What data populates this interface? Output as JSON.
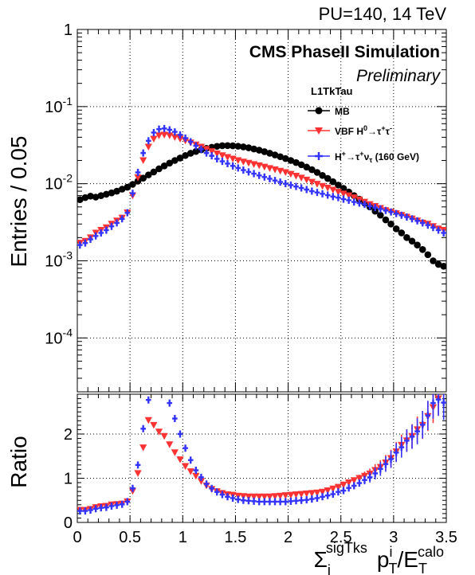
{
  "colors": {
    "mb": "#000000",
    "vbf": "#ff3333",
    "hplus": "#3333ff",
    "grid": "#000000"
  },
  "header": {
    "pileup": "PU=140, 14 TeV",
    "experiment": "CMS PhaseII Simulation",
    "status": "Preliminary",
    "algorithm": "L1TkTau"
  },
  "chart_data": [
    {
      "type": "scatter",
      "panel": "main",
      "ylabel": "Entries / 0.05",
      "xlim": [
        0,
        3.5
      ],
      "ylim": [
        2e-05,
        1
      ],
      "yscale": "log",
      "grid": true,
      "legend_position": "top-right",
      "x_ticks": [
        "0",
        "0.5",
        "1",
        "1.5",
        "2",
        "2.5",
        "3",
        "3.5"
      ],
      "y_ticks": [
        "1",
        "10^-1",
        "10^-2",
        "10^-3",
        "10^-4"
      ],
      "x": [
        0.025,
        0.075,
        0.125,
        0.175,
        0.225,
        0.275,
        0.325,
        0.375,
        0.425,
        0.475,
        0.525,
        0.575,
        0.625,
        0.675,
        0.725,
        0.775,
        0.825,
        0.875,
        0.925,
        0.975,
        1.025,
        1.075,
        1.125,
        1.175,
        1.225,
        1.275,
        1.325,
        1.375,
        1.425,
        1.475,
        1.525,
        1.575,
        1.625,
        1.675,
        1.725,
        1.775,
        1.825,
        1.875,
        1.925,
        1.975,
        2.025,
        2.075,
        2.125,
        2.175,
        2.225,
        2.275,
        2.325,
        2.375,
        2.425,
        2.475,
        2.525,
        2.575,
        2.625,
        2.675,
        2.725,
        2.775,
        2.825,
        2.875,
        2.925,
        2.975,
        3.025,
        3.075,
        3.125,
        3.175,
        3.225,
        3.275,
        3.325,
        3.375,
        3.425,
        3.475
      ],
      "series": [
        {
          "name": "MB",
          "marker": "circle",
          "values": [
            0.0062,
            0.0066,
            0.0069,
            0.0067,
            0.007,
            0.0073,
            0.0076,
            0.008,
            0.0085,
            0.009,
            0.0098,
            0.0108,
            0.0118,
            0.013,
            0.0142,
            0.0156,
            0.017,
            0.0185,
            0.02,
            0.0215,
            0.0232,
            0.0248,
            0.0262,
            0.0275,
            0.0287,
            0.0297,
            0.0305,
            0.0311,
            0.0312,
            0.031,
            0.0306,
            0.03,
            0.0292,
            0.0282,
            0.0272,
            0.026,
            0.0248,
            0.0236,
            0.0224,
            0.0212,
            0.02,
            0.0188,
            0.0176,
            0.0164,
            0.0152,
            0.014,
            0.0128,
            0.0117,
            0.0106,
            0.0096,
            0.0087,
            0.0078,
            0.007,
            0.0063,
            0.0056,
            0.005,
            0.0044,
            0.0039,
            0.0034,
            0.003,
            0.0026,
            0.0023,
            0.002,
            0.0018,
            0.0016,
            0.0014,
            0.0012,
            0.001,
            0.0009,
            0.00085
          ]
        },
        {
          "name": "VBF H⁰→τ⁺τ⁻",
          "marker": "triangle-down",
          "values": [
            0.0017,
            0.0018,
            0.002,
            0.0023,
            0.0025,
            0.0027,
            0.003,
            0.0033,
            0.0036,
            0.0042,
            0.007,
            0.012,
            0.02,
            0.03,
            0.038,
            0.042,
            0.043,
            0.042,
            0.04,
            0.038,
            0.036,
            0.034,
            0.032,
            0.03,
            0.028,
            0.0262,
            0.0245,
            0.0232,
            0.022,
            0.021,
            0.02,
            0.0192,
            0.0185,
            0.0178,
            0.0172,
            0.0165,
            0.0158,
            0.0152,
            0.0146,
            0.014,
            0.0133,
            0.0126,
            0.0119,
            0.0112,
            0.0105,
            0.0099,
            0.0093,
            0.0088,
            0.0083,
            0.0078,
            0.0074,
            0.007,
            0.0066,
            0.0062,
            0.0058,
            0.0054,
            0.0051,
            0.0048,
            0.0045,
            0.0043,
            0.0041,
            0.0039,
            0.0037,
            0.0035,
            0.0033,
            0.0031,
            0.003,
            0.0028,
            0.0026,
            0.0025
          ]
        },
        {
          "name": "H⁺→τ⁺ντ (160 GeV)",
          "marker": "cross",
          "values": [
            0.0016,
            0.0017,
            0.0019,
            0.0021,
            0.0023,
            0.0025,
            0.0028,
            0.0031,
            0.0035,
            0.0042,
            0.0075,
            0.014,
            0.025,
            0.036,
            0.046,
            0.051,
            0.052,
            0.05,
            0.047,
            0.043,
            0.039,
            0.035,
            0.031,
            0.028,
            0.025,
            0.023,
            0.021,
            0.0195,
            0.0182,
            0.017,
            0.016,
            0.015,
            0.0142,
            0.0135,
            0.0128,
            0.0122,
            0.0116,
            0.011,
            0.0105,
            0.01,
            0.0096,
            0.0092,
            0.0088,
            0.0084,
            0.008,
            0.0077,
            0.0074,
            0.0071,
            0.0068,
            0.0066,
            0.0063,
            0.0061,
            0.0058,
            0.0056,
            0.0054,
            0.0051,
            0.0049,
            0.0047,
            0.0045,
            0.0043,
            0.0041,
            0.0039,
            0.0037,
            0.0035,
            0.0033,
            0.0031,
            0.0029,
            0.0027,
            0.0025,
            0.0023
          ]
        }
      ]
    },
    {
      "type": "scatter",
      "panel": "ratio",
      "ylabel": "Ratio",
      "xlabel": "Σ_i^sigTks p_T^i / E_T^calo",
      "xlabel_parts": {
        "sigma": "Σ",
        "sub_i": "i",
        "sup_sig": "sigTks",
        "p": "p",
        "sup_p": "i",
        "sub_p": "T",
        "slash_e": "/E",
        "sup_e": "calo",
        "sub_e": "T"
      },
      "xlim": [
        0,
        3.5
      ],
      "ylim": [
        0,
        2.9
      ],
      "grid": true,
      "x_ticks": [
        "0",
        "0.5",
        "1",
        "1.5",
        "2",
        "2.5",
        "3",
        "3.5"
      ],
      "y_ticks": [
        "0",
        "1",
        "2"
      ],
      "x": [
        0.025,
        0.075,
        0.125,
        0.175,
        0.225,
        0.275,
        0.325,
        0.375,
        0.425,
        0.475,
        0.525,
        0.575,
        0.625,
        0.675,
        0.725,
        0.775,
        0.825,
        0.875,
        0.925,
        0.975,
        1.025,
        1.075,
        1.125,
        1.175,
        1.225,
        1.275,
        1.325,
        1.375,
        1.425,
        1.475,
        1.525,
        1.575,
        1.625,
        1.675,
        1.725,
        1.775,
        1.825,
        1.875,
        1.925,
        1.975,
        2.025,
        2.075,
        2.125,
        2.175,
        2.225,
        2.275,
        2.325,
        2.375,
        2.425,
        2.475,
        2.525,
        2.575,
        2.625,
        2.675,
        2.725,
        2.775,
        2.825,
        2.875,
        2.925,
        2.975,
        3.025,
        3.075,
        3.125,
        3.175,
        3.225,
        3.275,
        3.325,
        3.375,
        3.425,
        3.475
      ],
      "series": [
        {
          "name": "VBF H⁰→τ⁺τ⁻",
          "marker": "triangle-down",
          "values": [
            0.28,
            0.28,
            0.3,
            0.34,
            0.36,
            0.37,
            0.4,
            0.41,
            0.42,
            0.47,
            0.71,
            1.11,
            1.69,
            2.31,
            2.2,
            2.05,
            1.95,
            1.76,
            1.58,
            1.42,
            1.27,
            1.15,
            1.05,
            0.93,
            0.83,
            0.75,
            0.7,
            0.66,
            0.63,
            0.62,
            0.6,
            0.59,
            0.58,
            0.58,
            0.58,
            0.58,
            0.58,
            0.59,
            0.6,
            0.61,
            0.62,
            0.63,
            0.64,
            0.65,
            0.66,
            0.67,
            0.69,
            0.72,
            0.76,
            0.8,
            0.85,
            0.9,
            0.95,
            1.0,
            1.05,
            1.1,
            1.18,
            1.25,
            1.35,
            1.45,
            1.6,
            1.75,
            1.85,
            1.95,
            2.1,
            2.2,
            2.4,
            2.6,
            2.8,
            2.95
          ]
        },
        {
          "name": "H⁺→τ⁺ντ (160 GeV)",
          "marker": "cross",
          "values": [
            0.26,
            0.26,
            0.28,
            0.31,
            0.33,
            0.34,
            0.37,
            0.39,
            0.41,
            0.47,
            0.77,
            1.3,
            2.12,
            2.77,
            3.24,
            3.27,
            3.06,
            2.7,
            2.35,
            2.0,
            1.68,
            1.41,
            1.18,
            1.02,
            0.87,
            0.77,
            0.69,
            0.63,
            0.58,
            0.55,
            0.52,
            0.5,
            0.49,
            0.48,
            0.47,
            0.47,
            0.47,
            0.47,
            0.47,
            0.47,
            0.48,
            0.49,
            0.5,
            0.51,
            0.53,
            0.55,
            0.58,
            0.61,
            0.64,
            0.69,
            0.72,
            0.78,
            0.83,
            0.89,
            0.96,
            1.02,
            1.11,
            1.21,
            1.32,
            1.43,
            1.58,
            1.7,
            1.85,
            1.94,
            2.06,
            2.21,
            2.42,
            2.7,
            2.78,
            2.71
          ]
        }
      ]
    }
  ]
}
